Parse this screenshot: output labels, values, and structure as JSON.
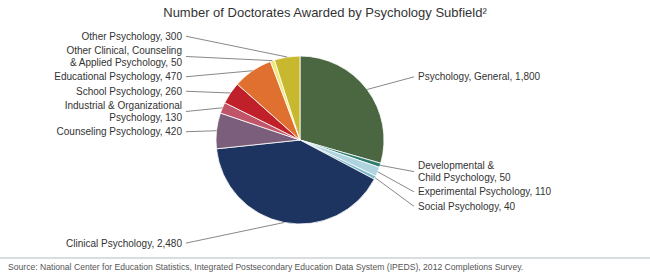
{
  "chart_data": {
    "type": "pie",
    "title": "Number of Doctorates Awarded by Psychology Subfield²",
    "categories": [
      "Psychology, General, 1,800",
      "Developmental &\nChild Psychology, 50",
      "Experimental Psychology, 110",
      "Social Psychology, 40",
      "Clinical Psychology, 2,480",
      "Counseling Psychology, 420",
      "Industrial & Organizational\nPsychology, 130",
      "School Psychology, 260",
      "Educational Psychology, 470",
      "Other Clinical, Counseling\n& Applied Psychology, 50",
      "Other Psychology, 300"
    ],
    "values": [
      1800,
      50,
      110,
      40,
      2480,
      420,
      130,
      260,
      470,
      50,
      300
    ],
    "colors": [
      "#4a6741",
      "#2e7d6e",
      "#aed4e0",
      "#7cb8cc",
      "#1e3460",
      "#7b5e7b",
      "#c0556a",
      "#c0202a",
      "#e07030",
      "#f0e87a",
      "#c8b830"
    ],
    "annotations": [
      "Source: National Center for Education Statistics, Integrated Postsecondary Education Data System (IPEDS), 2012 Completions Survey."
    ]
  }
}
